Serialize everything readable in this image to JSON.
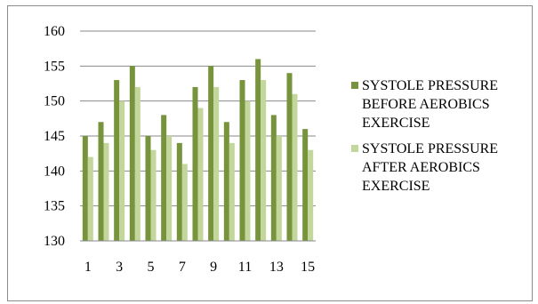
{
  "chart_data": {
    "type": "bar",
    "title": "",
    "xlabel": "",
    "ylabel": "",
    "ylim": [
      130,
      160
    ],
    "yticks": [
      130,
      135,
      140,
      145,
      150,
      155,
      160
    ],
    "categories": [
      1,
      2,
      3,
      4,
      5,
      6,
      7,
      8,
      9,
      10,
      11,
      12,
      13,
      14,
      15
    ],
    "xtick_labels": [
      "1",
      "3",
      "5",
      "7",
      "9",
      "11",
      "13",
      "15"
    ],
    "grid": "horizontal",
    "legend_position": "right",
    "series": [
      {
        "name": "SYSTOLE PRESSURE BEFORE AEROBICS EXERCISE",
        "color": "#77933c",
        "values": [
          145,
          147,
          153,
          155,
          145,
          148,
          144,
          152,
          155,
          147,
          153,
          156,
          148,
          154,
          146
        ]
      },
      {
        "name": "SYSTOLE PRESSURE AFTER AEROBICS EXERCISE",
        "color": "#c3d69b",
        "values": [
          142,
          144,
          150,
          152,
          143,
          145,
          141,
          149,
          152,
          144,
          150,
          153,
          145,
          151,
          143
        ]
      }
    ]
  }
}
